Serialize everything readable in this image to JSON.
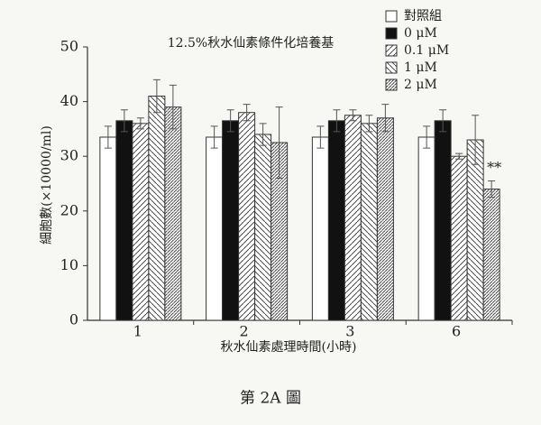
{
  "chart_data": {
    "type": "bar",
    "title": "12.5%秋水仙素條件化培養基",
    "x_label": "秋水仙素處理時間(小時)",
    "y_label": "細胞數(×10000/ml)",
    "caption": "第 2A 圖",
    "annotation": "**",
    "categories": [
      "1",
      "2",
      "3",
      "6"
    ],
    "series": [
      {
        "name": "對照組",
        "color": "#ffffff",
        "hatch": "none",
        "values": [
          33.5,
          33.5,
          33.5,
          33.5
        ],
        "errors": [
          2,
          2,
          2,
          2
        ]
      },
      {
        "name": "0 μM",
        "color": "#111111",
        "hatch": "none",
        "values": [
          36.5,
          36.5,
          36.5,
          36.5
        ],
        "errors": [
          2,
          2,
          2,
          2
        ]
      },
      {
        "name": "0.1 μM",
        "color": "#333333",
        "hatch": "forward",
        "values": [
          36,
          38,
          37.5,
          30
        ],
        "errors": [
          1,
          1.5,
          1,
          0.5
        ]
      },
      {
        "name": "1 μM",
        "color": "#333333",
        "hatch": "back",
        "values": [
          41,
          34,
          36,
          33
        ],
        "errors": [
          3,
          2,
          1.5,
          4.5
        ]
      },
      {
        "name": "2 μM",
        "color": "#333333",
        "hatch": "dense",
        "values": [
          39,
          32.5,
          37,
          24
        ],
        "errors": [
          4,
          6.5,
          2.5,
          1.5
        ]
      }
    ],
    "ylim": [
      0,
      50
    ],
    "yticks": [
      0,
      10,
      20,
      30,
      40,
      50
    ]
  }
}
